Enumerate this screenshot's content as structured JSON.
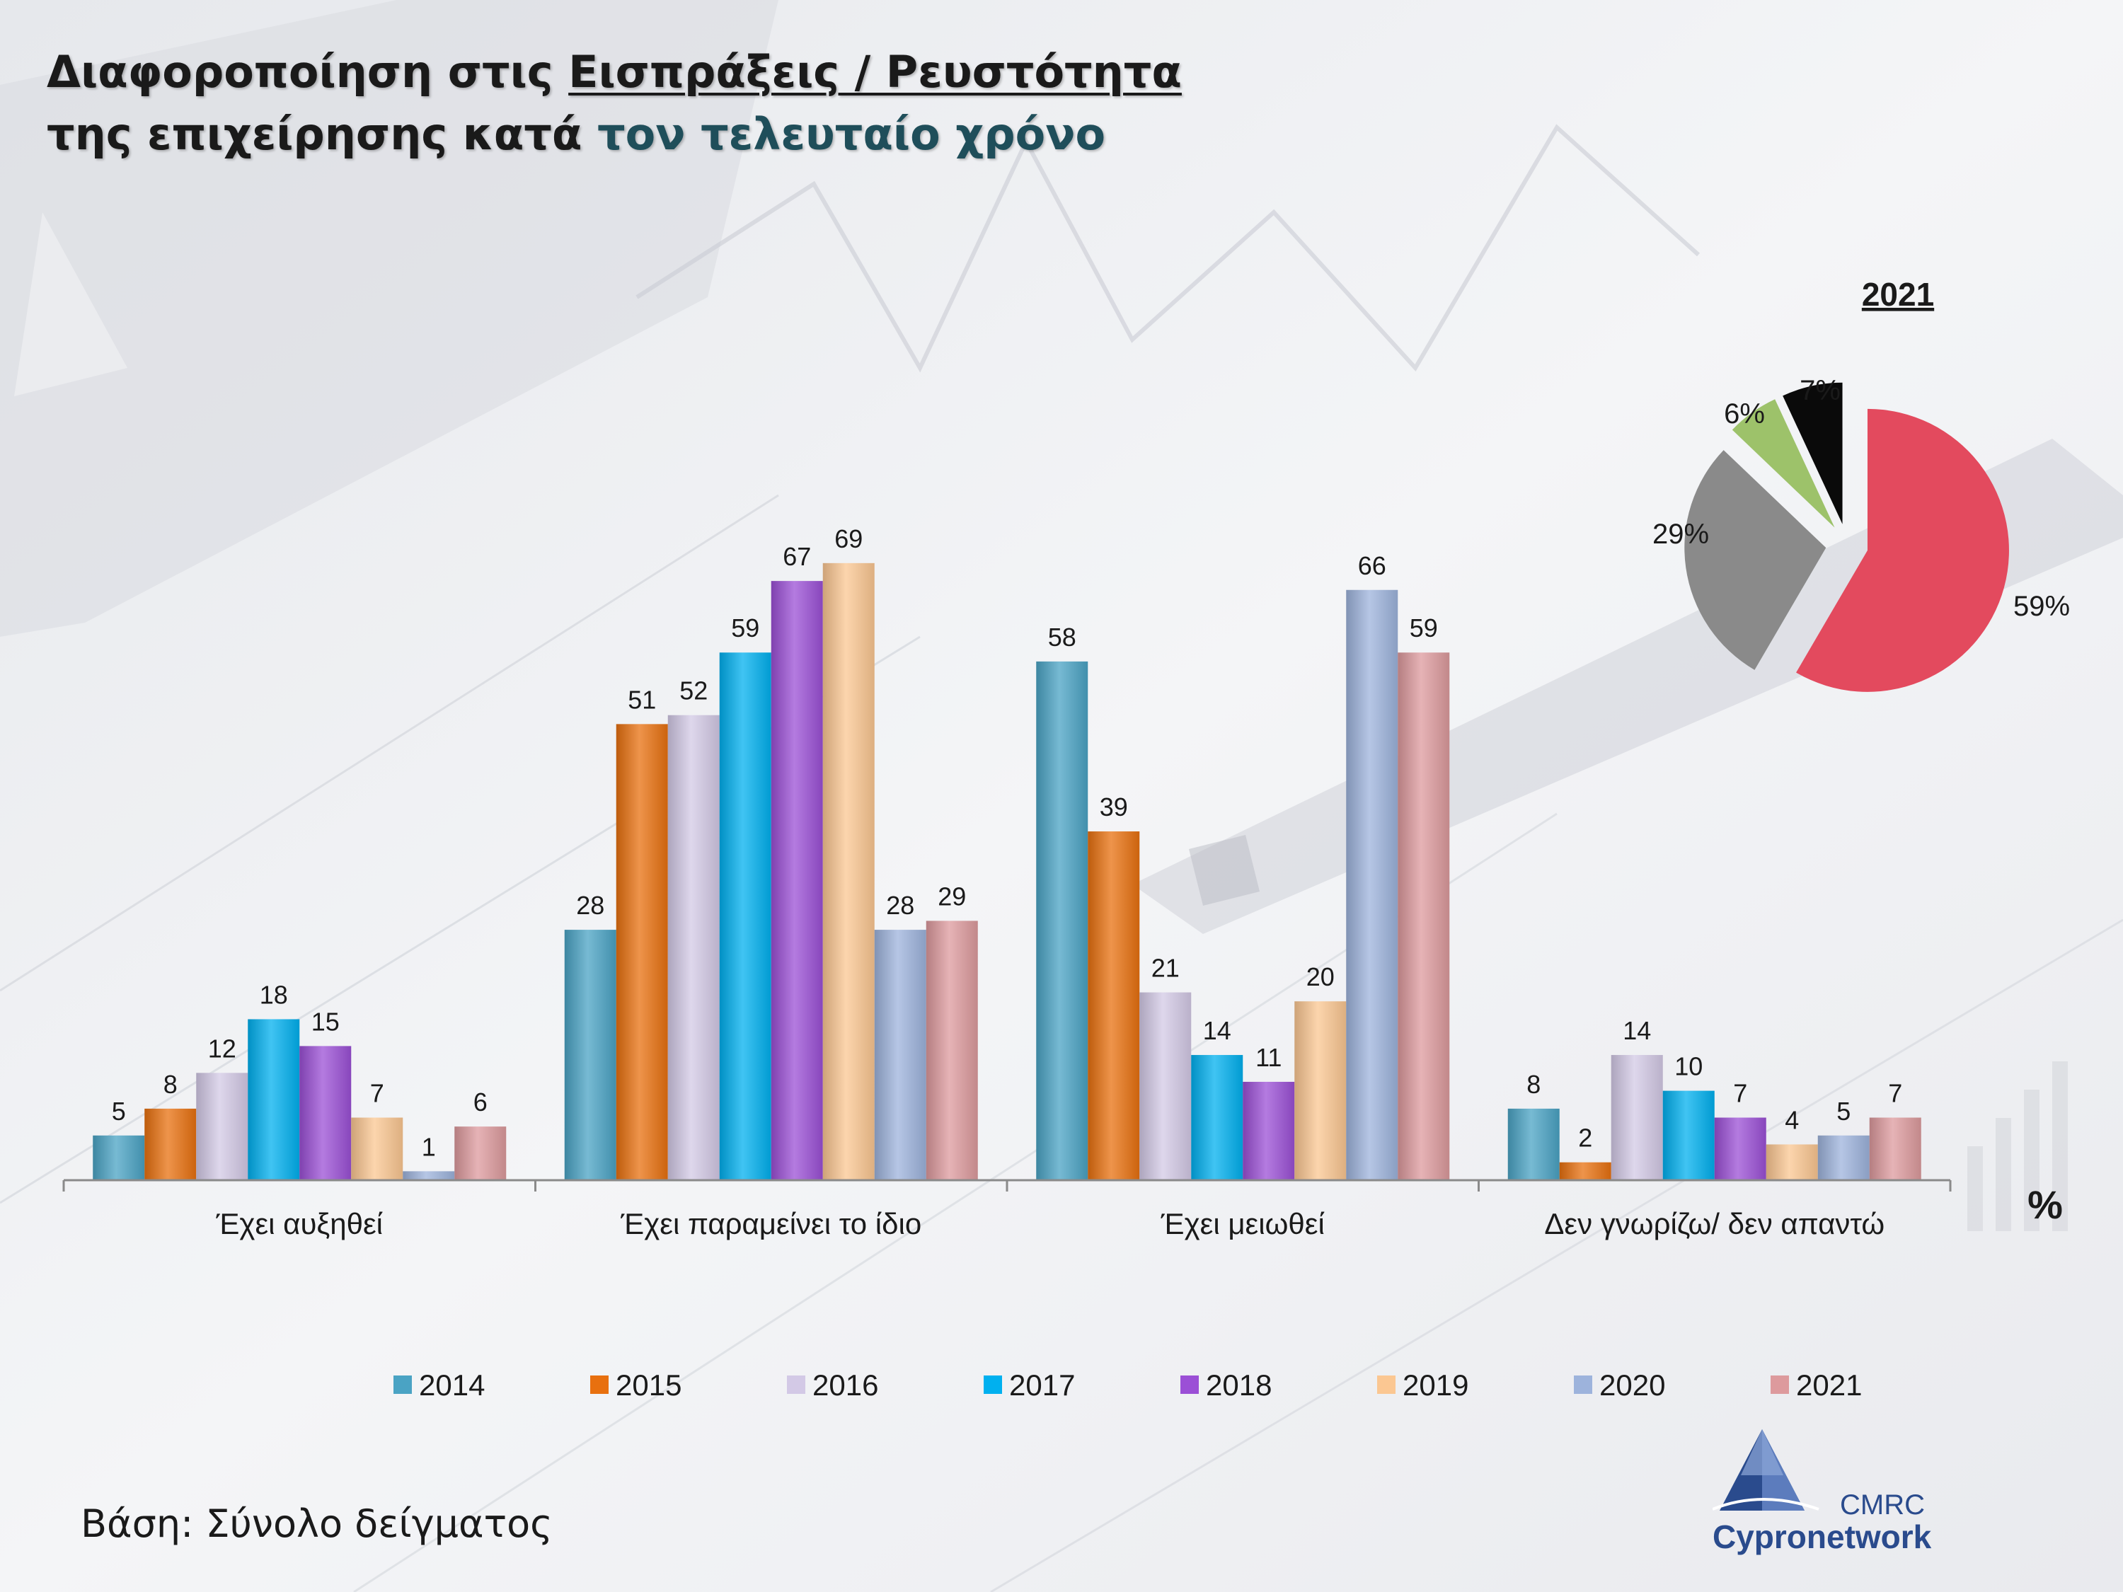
{
  "title": {
    "line1_a": "Διαφοροποίηση στις ",
    "line1_b": "Εισπράξεις / Ρευστότητα",
    "line2_a": "της επιχείρησης κατά ",
    "line2_b": "τον τελευταίο χρόνο"
  },
  "footer": {
    "base": "Βάση: Σύνολο δείγματος"
  },
  "logo": {
    "cmrc": "CMRC",
    "name": "Cypronetwork"
  },
  "chart_data": [
    {
      "type": "bar",
      "categories": [
        "Έχει αυξηθεί",
        "Έχει παραμείνει το ίδιο",
        "Έχει μειωθεί",
        "Δεν γνωρίζω/ δεν απαντώ"
      ],
      "unit_label": "%",
      "ylim": [
        0,
        75
      ],
      "grid": false,
      "legend_position": "bottom",
      "series": [
        {
          "name": "2014",
          "color": "#4aa3c4",
          "values": [
            5,
            28,
            58,
            8
          ]
        },
        {
          "name": "2015",
          "color": "#e8700f",
          "values": [
            8,
            51,
            39,
            2
          ]
        },
        {
          "name": "2016",
          "color": "#d3c9e6",
          "values": [
            12,
            52,
            21,
            14
          ]
        },
        {
          "name": "2017",
          "color": "#00b0ef",
          "values": [
            18,
            59,
            14,
            10
          ]
        },
        {
          "name": "2018",
          "color": "#9b4fd6",
          "values": [
            15,
            67,
            11,
            7
          ]
        },
        {
          "name": "2019",
          "color": "#fbc792",
          "values": [
            7,
            69,
            20,
            4
          ]
        },
        {
          "name": "2020",
          "color": "#9db3dc",
          "values": [
            1,
            28,
            66,
            5
          ]
        },
        {
          "name": "2021",
          "color": "#dd9a9d",
          "values": [
            6,
            29,
            59,
            7
          ]
        }
      ]
    },
    {
      "type": "pie",
      "title": "2021",
      "slices": [
        {
          "label": "59%",
          "value": 59,
          "color": "#e34a5e"
        },
        {
          "label": "29%",
          "value": 29,
          "color": "#8a8a8a"
        },
        {
          "label": "6%",
          "value": 6,
          "color": "#9dc26a"
        },
        {
          "label": "7%",
          "value": 7,
          "color": "#0a0a0a"
        }
      ]
    }
  ]
}
